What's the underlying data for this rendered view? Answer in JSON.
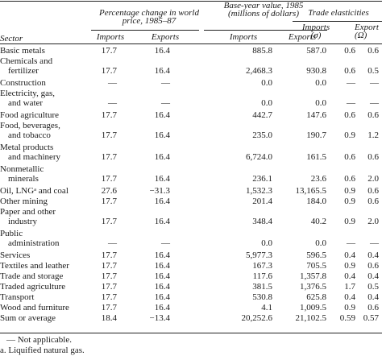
{
  "headers": {
    "group_price": "Percentage change in world price, 1985–87",
    "group_value": "Base-year value, 1985 (millions of dollars)",
    "group_elast": "Trade elasticities",
    "sector": "Sector",
    "price_imports": "Imports",
    "price_exports": "Exports",
    "value_imports": "Imports",
    "value_exports": "Exports",
    "elast_imports": "Imports (σ)",
    "elast_exports": "Export (Ω)"
  },
  "rows": [
    {
      "sector_lines": [
        "Basic metals"
      ],
      "v": [
        "17.7",
        "16.4",
        "885.8",
        "587.0",
        "0.6",
        "0.6"
      ]
    },
    {
      "sector_lines": [
        "Chemicals and",
        "fertilizer"
      ],
      "v": [
        "17.7",
        "16.4",
        "2,468.3",
        "930.8",
        "0.6",
        "0.5"
      ]
    },
    {
      "sector_lines": [
        "Construction"
      ],
      "v": [
        "—",
        "—",
        "0.0",
        "0.0",
        "—",
        "—"
      ]
    },
    {
      "sector_lines": [
        "Electricity, gas,",
        "and water"
      ],
      "v": [
        "—",
        "—",
        "0.0",
        "0.0",
        "—",
        "—"
      ]
    },
    {
      "sector_lines": [
        "Food agriculture"
      ],
      "v": [
        "17.7",
        "16.4",
        "442.7",
        "147.6",
        "0.6",
        "0.6"
      ]
    },
    {
      "sector_lines": [
        "Food, beverages,",
        "and tobacco"
      ],
      "v": [
        "17.7",
        "16.4",
        "235.0",
        "190.7",
        "0.9",
        "1.2"
      ]
    },
    {
      "sector_lines": [
        "Metal products",
        "and machinery"
      ],
      "v": [
        "17.7",
        "16.4",
        "6,724.0",
        "161.5",
        "0.6",
        "0.6"
      ]
    },
    {
      "sector_lines": [
        "Nonmetallic",
        "minerals"
      ],
      "v": [
        "17.7",
        "16.4",
        "236.1",
        "23.6",
        "0.6",
        "2.0"
      ]
    },
    {
      "sector_lines": [
        "Oil, LNGᵃ and coal"
      ],
      "v": [
        "27.6",
        "−31.3",
        "1,532.3",
        "13,165.5",
        "0.9",
        "0.6"
      ]
    },
    {
      "sector_lines": [
        "Other mining"
      ],
      "v": [
        "17.7",
        "16.4",
        "201.4",
        "184.0",
        "0.9",
        "0.6"
      ]
    },
    {
      "sector_lines": [
        "Paper and other",
        "industry"
      ],
      "v": [
        "17.7",
        "16.4",
        "348.4",
        "40.2",
        "0.9",
        "2.0"
      ]
    },
    {
      "sector_lines": [
        "Public",
        "administration"
      ],
      "v": [
        "—",
        "—",
        "0.0",
        "0.0",
        "—",
        "—"
      ]
    },
    {
      "sector_lines": [
        "Services"
      ],
      "v": [
        "17.7",
        "16.4",
        "5,977.3",
        "596.5",
        "0.4",
        "0.4"
      ]
    },
    {
      "sector_lines": [
        "Textiles and leather"
      ],
      "v": [
        "17.7",
        "16.4",
        "167.3",
        "705.5",
        "0.9",
        "0.6"
      ]
    },
    {
      "sector_lines": [
        "Trade and storage"
      ],
      "v": [
        "17.7",
        "16.4",
        "117.6",
        "1,357.8",
        "0.4",
        "0.4"
      ]
    },
    {
      "sector_lines": [
        "Traded agriculture"
      ],
      "v": [
        "17.7",
        "16.4",
        "381.5",
        "1,376.5",
        "1.7",
        "0.5"
      ]
    },
    {
      "sector_lines": [
        "Transport"
      ],
      "v": [
        "17.7",
        "16.4",
        "530.8",
        "625.8",
        "0.4",
        "0.4"
      ]
    },
    {
      "sector_lines": [
        "Wood and furniture"
      ],
      "v": [
        "17.7",
        "16.4",
        "4.1",
        "1,009.5",
        "0.9",
        "0.6"
      ]
    },
    {
      "sector_lines": [
        "Sum or average"
      ],
      "v": [
        "18.4",
        "−13.4",
        "20,252.6",
        "21,102.5",
        "0.59",
        "0.57"
      ]
    }
  ],
  "footnotes": [
    "— Not applicable.",
    "a. Liquified natural gas."
  ]
}
